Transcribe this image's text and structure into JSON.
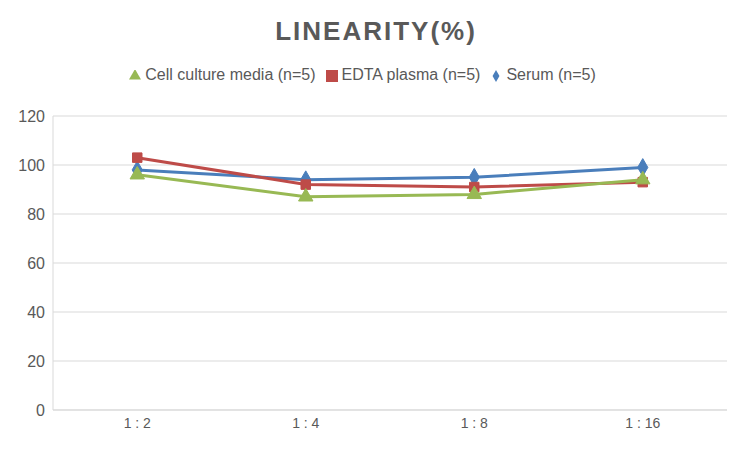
{
  "chart_data": {
    "type": "line",
    "title": "LINEARITY(%)",
    "categories": [
      "1 : 2",
      "1 : 4",
      "1 : 8",
      "1 : 16"
    ],
    "series": [
      {
        "name": "Serum (n=5)",
        "color": "#4a7ebb",
        "marker": "diamond",
        "values": [
          98,
          94,
          95,
          99
        ]
      },
      {
        "name": "EDTA plasma (n=5)",
        "color": "#be4b48",
        "marker": "square",
        "values": [
          103,
          92,
          91,
          93
        ]
      },
      {
        "name": "Cell culture media (n=5)",
        "color": "#98b954",
        "marker": "triangle",
        "values": [
          96,
          87,
          88,
          94
        ]
      }
    ],
    "ylim": [
      0,
      120
    ],
    "yticks": [
      0,
      20,
      40,
      60,
      80,
      100,
      120
    ],
    "grid": true,
    "legend": "top"
  }
}
